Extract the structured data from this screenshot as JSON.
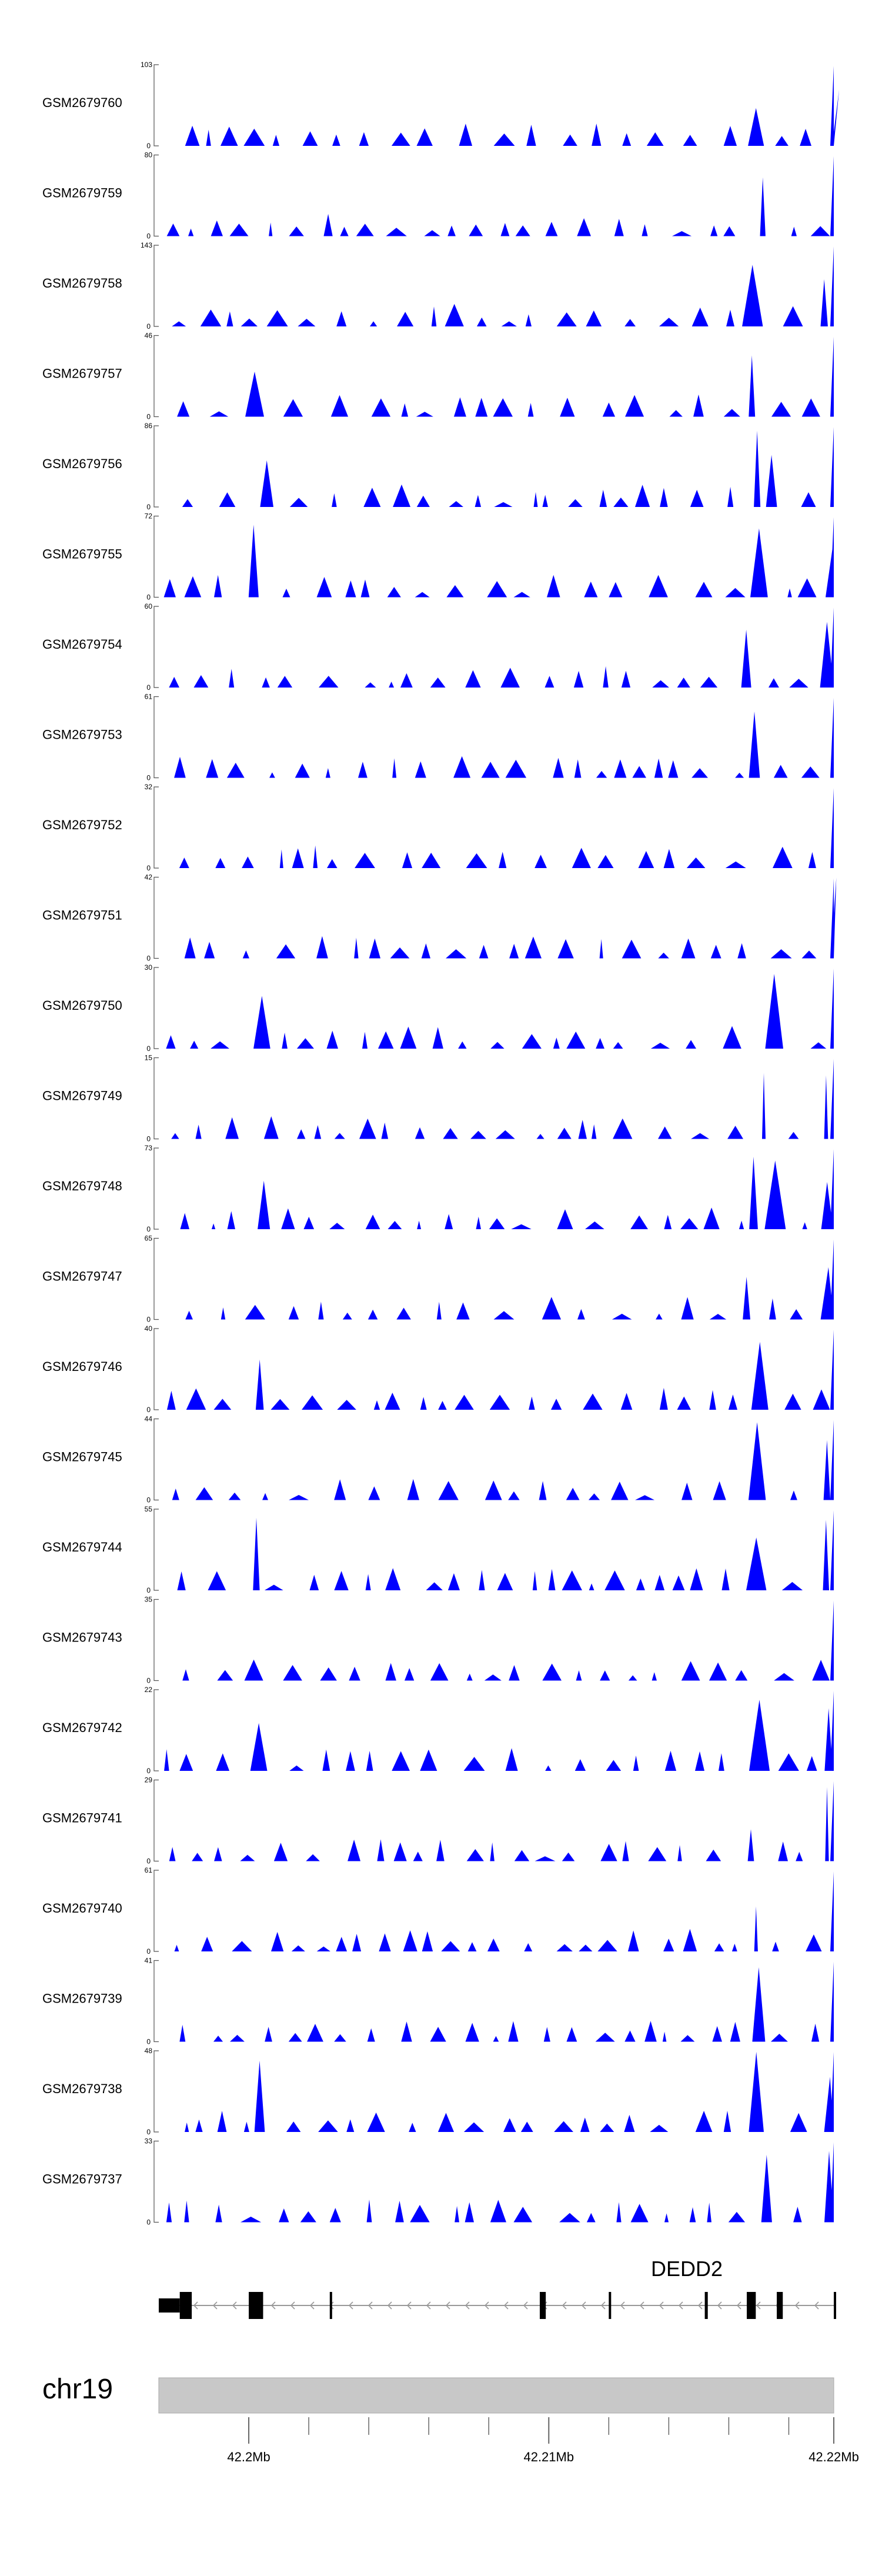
{
  "chart_data": {
    "type": "area",
    "title": "",
    "chromosome": "chr19",
    "x_range_mb": [
      42.197,
      42.2195
    ],
    "x_ticks_mb": [
      42.2,
      42.21,
      42.22
    ],
    "x_tick_labels": [
      "42.2Mb",
      "42.21Mb",
      "42.22Mb"
    ],
    "minor_ticks_mb": [
      42.2,
      42.202,
      42.204,
      42.206,
      42.208,
      42.21,
      42.212,
      42.214,
      42.216,
      42.218,
      42.22
    ],
    "tracks": [
      {
        "name": "GSM2679760",
        "max": 103,
        "max_label": "103",
        "seed": 11
      },
      {
        "name": "GSM2679759",
        "max": 80,
        "max_label": "80",
        "seed": 12
      },
      {
        "name": "GSM2679758",
        "max": 143,
        "max_label": "143",
        "seed": 13
      },
      {
        "name": "GSM2679757",
        "max": 46,
        "max_label": "46",
        "seed": 14
      },
      {
        "name": "GSM2679756",
        "max": 86,
        "max_label": "86",
        "seed": 15
      },
      {
        "name": "GSM2679755",
        "max": 72,
        "max_label": "72",
        "seed": 16
      },
      {
        "name": "GSM2679754",
        "max": 60,
        "max_label": "60",
        "seed": 17
      },
      {
        "name": "GSM2679753",
        "max": 61,
        "max_label": "61",
        "seed": 18
      },
      {
        "name": "GSM2679752",
        "max": 32,
        "max_label": "32",
        "seed": 19
      },
      {
        "name": "GSM2679751",
        "max": 42,
        "max_label": "42",
        "seed": 20
      },
      {
        "name": "GSM2679750",
        "max": 30,
        "max_label": "30",
        "seed": 21
      },
      {
        "name": "GSM2679749",
        "max": 15,
        "max_label": "15",
        "seed": 22
      },
      {
        "name": "GSM2679748",
        "max": 73,
        "max_label": "73",
        "seed": 23
      },
      {
        "name": "GSM2679747",
        "max": 65,
        "max_label": "65",
        "seed": 24
      },
      {
        "name": "GSM2679746",
        "max": 40,
        "max_label": "40",
        "seed": 25
      },
      {
        "name": "GSM2679745",
        "max": 44,
        "max_label": "44",
        "seed": 26
      },
      {
        "name": "GSM2679744",
        "max": 55,
        "max_label": "55",
        "seed": 27
      },
      {
        "name": "GSM2679743",
        "max": 35,
        "max_label": "35",
        "seed": 28
      },
      {
        "name": "GSM2679742",
        "max": 22,
        "max_label": "22",
        "seed": 29
      },
      {
        "name": "GSM2679741",
        "max": 29,
        "max_label": "29",
        "seed": 30
      },
      {
        "name": "GSM2679740",
        "max": 61,
        "max_label": "61",
        "seed": 31
      },
      {
        "name": "GSM2679739",
        "max": 41,
        "max_label": "41",
        "seed": 32
      },
      {
        "name": "GSM2679738",
        "max": 48,
        "max_label": "48",
        "seed": 33
      },
      {
        "name": "GSM2679737",
        "max": 33,
        "max_label": "33",
        "seed": 34
      }
    ],
    "y_min_label": "0",
    "gene": {
      "name": "DEDD2",
      "strand": "-",
      "exons_mb": [
        [
          42.197,
          42.1977,
          "utr"
        ],
        [
          42.1977,
          42.1981,
          "cds"
        ],
        [
          42.2,
          42.2004,
          "cds"
        ],
        [
          42.2004,
          42.2005,
          "thin"
        ],
        [
          42.2027,
          42.2028,
          "thin"
        ],
        [
          42.2097,
          42.2099,
          "cds"
        ],
        [
          42.212,
          42.2121,
          "thin"
        ],
        [
          42.2152,
          42.2153,
          "cds"
        ],
        [
          42.2166,
          42.2169,
          "cds"
        ],
        [
          42.2176,
          42.2178,
          "cds"
        ],
        [
          42.2195,
          42.2196,
          "thin"
        ]
      ]
    },
    "colors": {
      "coverage": "#0000ff",
      "axis": "#555555",
      "ideogram": "#c8c8c8",
      "exon": "#000000",
      "intron_line": "#999999"
    }
  }
}
